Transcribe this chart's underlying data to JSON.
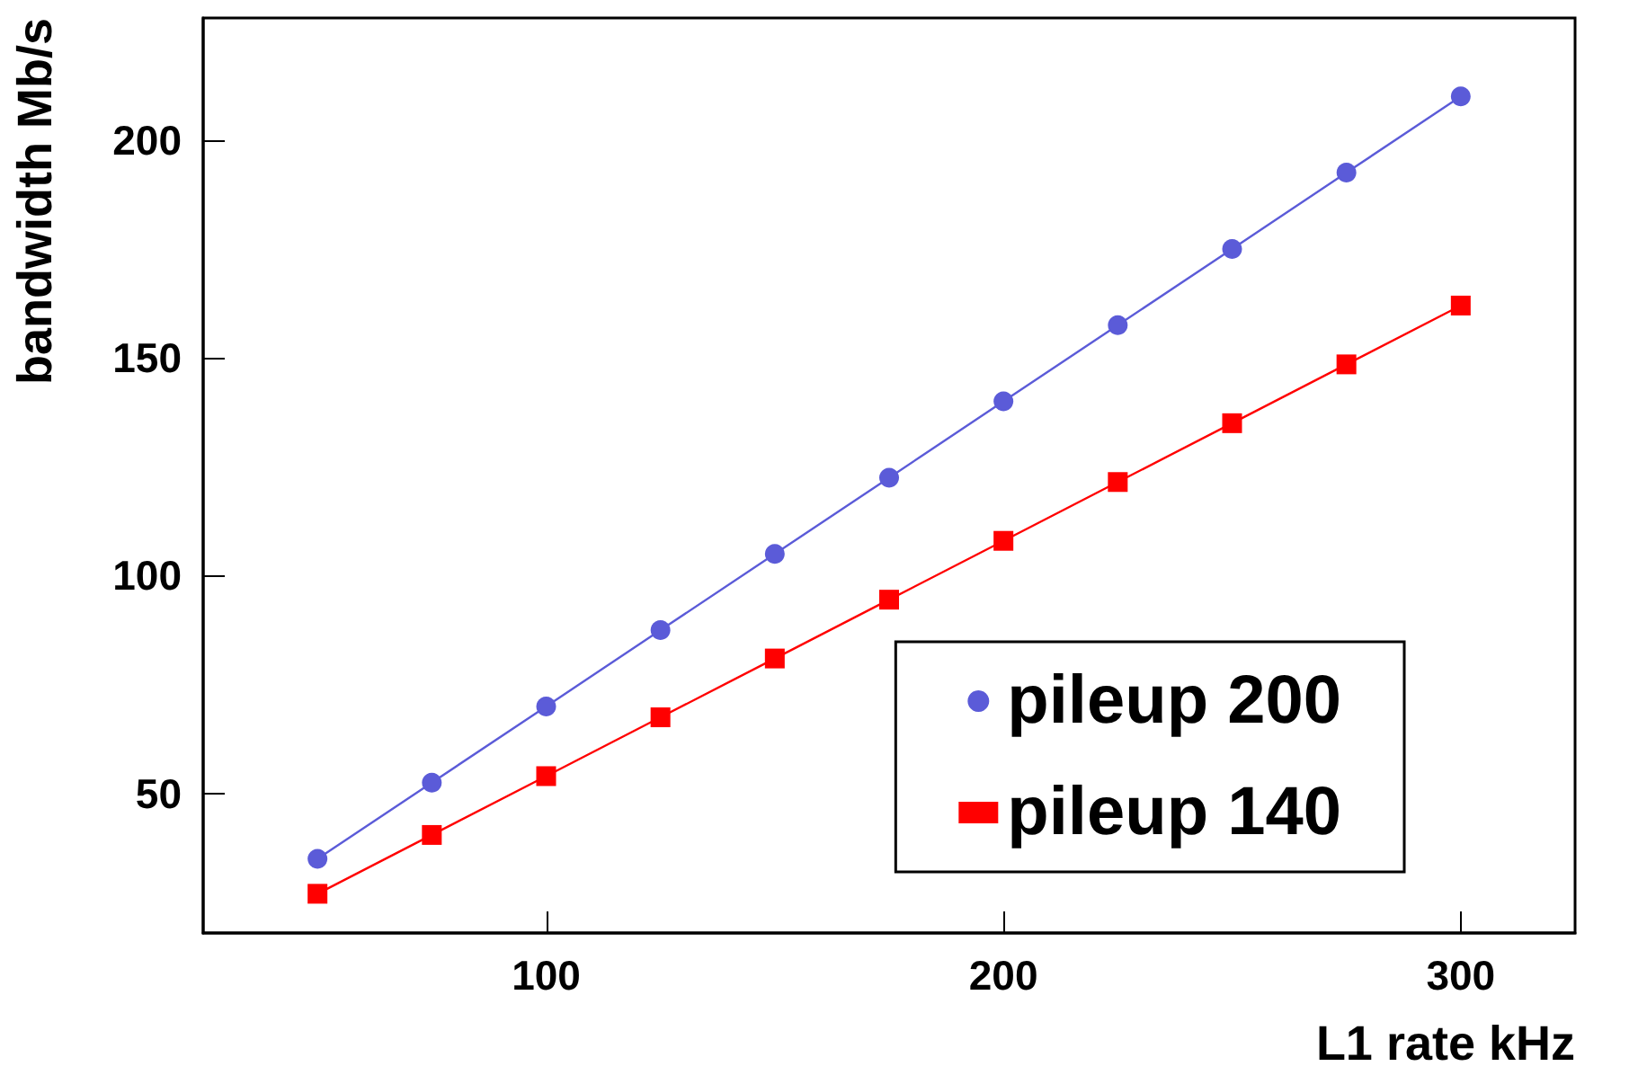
{
  "chart_data": {
    "type": "line",
    "xlabel": "L1 rate kHz",
    "ylabel": "bandwidth Mb/s",
    "x": [
      50,
      75,
      100,
      125,
      150,
      175,
      200,
      225,
      250,
      275,
      300
    ],
    "series": [
      {
        "name": "pileup 200",
        "color": "#5b5bd8",
        "marker": "circle",
        "values": [
          35,
          52.5,
          70,
          87.5,
          105,
          122.5,
          140,
          157.5,
          175,
          192.5,
          210
        ]
      },
      {
        "name": "pileup 140",
        "color": "#ff0000",
        "marker": "square",
        "values": [
          27,
          40.5,
          54,
          67.5,
          81,
          94.5,
          108,
          121.5,
          135,
          148.5,
          162
        ]
      }
    ],
    "xlim": [
      25,
      325
    ],
    "xticks": [
      100,
      200,
      300
    ],
    "ylim": [
      18,
      228
    ],
    "yticks": [
      50,
      100,
      150,
      200
    ],
    "grid": false,
    "legend": "bottom right",
    "line_style": "solid"
  }
}
